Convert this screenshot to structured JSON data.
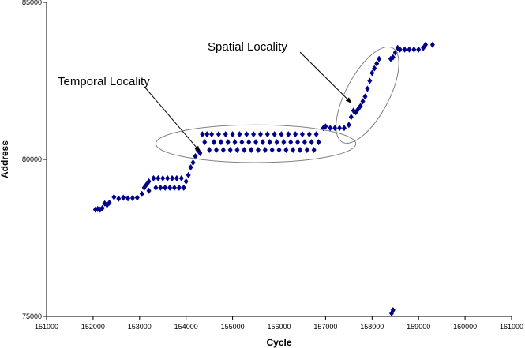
{
  "chart_data": {
    "type": "scatter",
    "title": "",
    "xlabel": "Cycle",
    "ylabel": "Address",
    "xlim": [
      151000,
      161000
    ],
    "ylim": [
      75000,
      85000
    ],
    "x_ticks": [
      151000,
      152000,
      153000,
      154000,
      155000,
      156000,
      157000,
      158000,
      159000,
      160000,
      161000
    ],
    "y_ticks": [
      75000,
      80000,
      85000
    ],
    "grid": false,
    "legend": "none",
    "marker_color": "#00008B",
    "annotation_color": "#808080",
    "series": [
      {
        "points": [
          [
            152050,
            78400
          ],
          [
            152100,
            78420
          ],
          [
            152150,
            78400
          ],
          [
            152200,
            78450
          ],
          [
            152250,
            78600
          ],
          [
            152300,
            78550
          ],
          [
            152350,
            78620
          ],
          [
            152450,
            78800
          ],
          [
            152550,
            78750
          ],
          [
            152650,
            78780
          ],
          [
            152750,
            78760
          ],
          [
            152850,
            78770
          ],
          [
            152950,
            78780
          ],
          [
            153050,
            78900
          ],
          [
            153100,
            79100
          ],
          [
            153150,
            79200
          ],
          [
            153200,
            79300
          ],
          [
            153200,
            79000
          ],
          [
            153300,
            79400
          ],
          [
            153350,
            79100
          ],
          [
            153400,
            79400
          ],
          [
            153450,
            79100
          ],
          [
            153500,
            79400
          ],
          [
            153550,
            79100
          ],
          [
            153600,
            79400
          ],
          [
            153650,
            79100
          ],
          [
            153700,
            79400
          ],
          [
            153750,
            79100
          ],
          [
            153800,
            79400
          ],
          [
            153850,
            79100
          ],
          [
            153900,
            79400
          ],
          [
            153950,
            79100
          ],
          [
            154000,
            79300
          ],
          [
            154050,
            79500
          ],
          [
            154100,
            79750
          ],
          [
            154150,
            79900
          ],
          [
            154200,
            80100
          ],
          [
            154250,
            80300
          ],
          [
            154300,
            80200
          ],
          [
            154350,
            80800
          ],
          [
            154400,
            80550
          ],
          [
            154450,
            80800
          ],
          [
            154500,
            80300
          ],
          [
            154550,
            80800
          ],
          [
            154600,
            80550
          ],
          [
            154650,
            80300
          ],
          [
            154700,
            80800
          ],
          [
            154750,
            80550
          ],
          [
            154800,
            80300
          ],
          [
            154850,
            80800
          ],
          [
            154900,
            80550
          ],
          [
            154950,
            80300
          ],
          [
            155000,
            80800
          ],
          [
            155050,
            80550
          ],
          [
            155100,
            80300
          ],
          [
            155150,
            80800
          ],
          [
            155200,
            80550
          ],
          [
            155250,
            80300
          ],
          [
            155300,
            80800
          ],
          [
            155350,
            80550
          ],
          [
            155400,
            80300
          ],
          [
            155450,
            80800
          ],
          [
            155500,
            80550
          ],
          [
            155550,
            80300
          ],
          [
            155600,
            80800
          ],
          [
            155650,
            80550
          ],
          [
            155700,
            80300
          ],
          [
            155750,
            80800
          ],
          [
            155800,
            80550
          ],
          [
            155850,
            80300
          ],
          [
            155900,
            80800
          ],
          [
            155950,
            80550
          ],
          [
            156000,
            80300
          ],
          [
            156050,
            80800
          ],
          [
            156100,
            80550
          ],
          [
            156150,
            80300
          ],
          [
            156200,
            80800
          ],
          [
            156250,
            80550
          ],
          [
            156300,
            80300
          ],
          [
            156350,
            80800
          ],
          [
            156400,
            80550
          ],
          [
            156450,
            80300
          ],
          [
            156500,
            80800
          ],
          [
            156550,
            80550
          ],
          [
            156600,
            80300
          ],
          [
            156650,
            80800
          ],
          [
            156700,
            80550
          ],
          [
            156750,
            80300
          ],
          [
            156800,
            80800
          ],
          [
            156850,
            80550
          ],
          [
            156950,
            81000
          ],
          [
            157000,
            81050
          ],
          [
            157100,
            81000
          ],
          [
            157200,
            81000
          ],
          [
            157300,
            81000
          ],
          [
            157400,
            81000
          ],
          [
            157500,
            81100
          ],
          [
            157550,
            81350
          ],
          [
            157600,
            81550
          ],
          [
            157650,
            81500
          ],
          [
            157700,
            81600
          ],
          [
            157750,
            81700
          ],
          [
            157800,
            81850
          ],
          [
            157850,
            82000
          ],
          [
            157900,
            82250
          ],
          [
            157950,
            82500
          ],
          [
            158000,
            82750
          ],
          [
            158050,
            82900
          ],
          [
            158100,
            83050
          ],
          [
            158150,
            83200
          ],
          [
            158400,
            83200
          ],
          [
            158450,
            83250
          ],
          [
            158500,
            83400
          ],
          [
            158550,
            83550
          ],
          [
            158600,
            83500
          ],
          [
            158700,
            83500
          ],
          [
            158800,
            83500
          ],
          [
            158900,
            83500
          ],
          [
            159000,
            83500
          ],
          [
            159100,
            83550
          ],
          [
            159150,
            83650
          ],
          [
            159300,
            83650
          ],
          [
            158420,
            75100
          ],
          [
            158450,
            75200
          ]
        ]
      }
    ],
    "annotations": [
      {
        "text": "Temporal Locality",
        "target": [
          154300,
          80250
        ],
        "ellipse": {
          "cx": 155500,
          "cy": 80500,
          "rx": 2150,
          "ry": 600
        }
      },
      {
        "text": "Spatial Locality",
        "target": [
          157550,
          81800
        ],
        "ellipse": {
          "cx": 157900,
          "cy": 82050,
          "rx": 460,
          "ry": 1700
        }
      }
    ]
  }
}
